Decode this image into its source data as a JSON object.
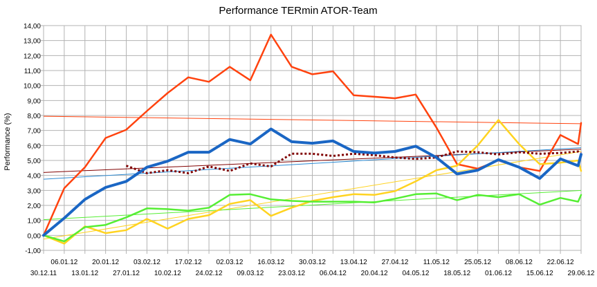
{
  "chart_data": {
    "type": "line",
    "title": "Performance TERmin ATOR-Team",
    "xlabel": "",
    "ylabel": "Performance (%)",
    "ylim": [
      -1,
      14
    ],
    "yticks": [
      "-1,00",
      "0,00",
      "1,00",
      "2,00",
      "3,00",
      "4,00",
      "5,00",
      "6,00",
      "7,00",
      "8,00",
      "9,00",
      "10,00",
      "11,00",
      "12,00",
      "13,00",
      "14,00"
    ],
    "grid": true,
    "legend": "none",
    "x_dates": [
      "30.12.11",
      "06.01.12",
      "13.01.12",
      "20.01.12",
      "27.01.12",
      "03.02.12",
      "10.02.12",
      "17.02.12",
      "24.02.12",
      "02.03.12",
      "09.03.12",
      "16.03.12",
      "23.03.12",
      "30.03.12",
      "06.04.12",
      "13.04.12",
      "20.04.12",
      "27.04.12",
      "04.05.12",
      "11.05.12",
      "18.05.12",
      "25.05.12",
      "01.06.12",
      "08.06.12",
      "15.06.12",
      "22.06.12",
      "29.06.12"
    ],
    "series": [
      {
        "color": "#ff420e",
        "width": 2.5,
        "dash": "",
        "points": [
          [
            "30.12.11",
            0.0
          ],
          [
            "06.01.12",
            3.15
          ],
          [
            "13.01.12",
            4.55
          ],
          [
            "20.01.12",
            6.5
          ],
          [
            "27.01.12",
            7.05
          ],
          [
            "03.02.12",
            8.3
          ],
          [
            "10.02.12",
            9.5
          ],
          [
            "17.02.12",
            10.55
          ],
          [
            "24.02.12",
            10.25
          ],
          [
            "02.03.12",
            11.25
          ],
          [
            "09.03.12",
            10.35
          ],
          [
            "16.03.12",
            13.4
          ],
          [
            "23.03.12",
            11.25
          ],
          [
            "30.03.12",
            10.75
          ],
          [
            "06.04.12",
            10.95
          ],
          [
            "13.04.12",
            9.35
          ],
          [
            "20.04.12",
            9.25
          ],
          [
            "27.04.12",
            9.15
          ],
          [
            "04.05.12",
            9.4
          ],
          [
            "11.05.12",
            7.2
          ],
          [
            "18.05.12",
            4.75
          ],
          [
            "25.05.12",
            4.45
          ],
          [
            "01.06.12",
            5.0
          ],
          [
            "08.06.12",
            4.55
          ],
          [
            "15.06.12",
            4.3
          ],
          [
            "22.06.12",
            6.7
          ],
          [
            "28.06.12",
            6.1
          ],
          [
            "29.06.12",
            7.5
          ]
        ]
      },
      {
        "color": "#ffd320",
        "width": 2.5,
        "dash": "",
        "points": [
          [
            "30.12.11",
            0.0
          ],
          [
            "06.01.12",
            -0.55
          ],
          [
            "13.01.12",
            0.6
          ],
          [
            "20.01.12",
            0.15
          ],
          [
            "27.01.12",
            0.35
          ],
          [
            "03.02.12",
            1.1
          ],
          [
            "10.02.12",
            0.45
          ],
          [
            "17.02.12",
            1.1
          ],
          [
            "24.02.12",
            1.35
          ],
          [
            "02.03.12",
            2.1
          ],
          [
            "09.03.12",
            2.35
          ],
          [
            "16.03.12",
            1.3
          ],
          [
            "23.03.12",
            1.85
          ],
          [
            "30.03.12",
            2.3
          ],
          [
            "06.04.12",
            2.55
          ],
          [
            "13.04.12",
            2.75
          ],
          [
            "20.04.12",
            2.7
          ],
          [
            "27.04.12",
            2.95
          ],
          [
            "04.05.12",
            3.6
          ],
          [
            "11.05.12",
            4.35
          ],
          [
            "18.05.12",
            4.65
          ],
          [
            "25.05.12",
            6.0
          ],
          [
            "01.06.12",
            7.7
          ],
          [
            "08.06.12",
            6.1
          ],
          [
            "15.06.12",
            4.75
          ],
          [
            "22.06.12",
            4.85
          ],
          [
            "28.06.12",
            5.0
          ],
          [
            "29.06.12",
            4.3
          ]
        ]
      },
      {
        "color": "#55ee33",
        "width": 2.5,
        "dash": "",
        "points": [
          [
            "30.12.11",
            0.0
          ],
          [
            "06.01.12",
            -0.4
          ],
          [
            "13.01.12",
            0.55
          ],
          [
            "20.01.12",
            0.7
          ],
          [
            "27.01.12",
            1.2
          ],
          [
            "03.02.12",
            1.8
          ],
          [
            "10.02.12",
            1.75
          ],
          [
            "17.02.12",
            1.65
          ],
          [
            "24.02.12",
            1.85
          ],
          [
            "02.03.12",
            2.7
          ],
          [
            "09.03.12",
            2.75
          ],
          [
            "16.03.12",
            2.4
          ],
          [
            "23.03.12",
            2.3
          ],
          [
            "30.03.12",
            2.25
          ],
          [
            "06.04.12",
            2.25
          ],
          [
            "13.04.12",
            2.25
          ],
          [
            "20.04.12",
            2.2
          ],
          [
            "27.04.12",
            2.45
          ],
          [
            "04.05.12",
            2.75
          ],
          [
            "11.05.12",
            2.8
          ],
          [
            "18.05.12",
            2.35
          ],
          [
            "25.05.12",
            2.7
          ],
          [
            "01.06.12",
            2.55
          ],
          [
            "08.06.12",
            2.75
          ],
          [
            "15.06.12",
            2.05
          ],
          [
            "22.06.12",
            2.5
          ],
          [
            "28.06.12",
            2.25
          ],
          [
            "29.06.12",
            2.7
          ]
        ]
      },
      {
        "color": "#800000",
        "width": 3,
        "dash": "3,3",
        "points": [
          [
            "27.01.12",
            4.65
          ],
          [
            "03.02.12",
            4.15
          ],
          [
            "10.02.12",
            4.35
          ],
          [
            "17.02.12",
            4.15
          ],
          [
            "24.02.12",
            4.6
          ],
          [
            "02.03.12",
            4.3
          ],
          [
            "09.03.12",
            4.8
          ],
          [
            "16.03.12",
            4.6
          ],
          [
            "23.03.12",
            5.45
          ],
          [
            "30.03.12",
            5.45
          ],
          [
            "06.04.12",
            5.3
          ],
          [
            "13.04.12",
            5.45
          ],
          [
            "20.04.12",
            5.35
          ],
          [
            "27.04.12",
            5.2
          ],
          [
            "04.05.12",
            5.1
          ],
          [
            "11.05.12",
            5.2
          ],
          [
            "18.05.12",
            5.6
          ],
          [
            "25.05.12",
            5.55
          ],
          [
            "01.06.12",
            5.4
          ],
          [
            "08.06.12",
            5.55
          ],
          [
            "15.06.12",
            5.45
          ],
          [
            "22.06.12",
            5.5
          ],
          [
            "28.06.12",
            5.6
          ],
          [
            "29.06.12",
            5.5
          ]
        ]
      },
      {
        "color": "#1a66c4",
        "width": 4,
        "dash": "",
        "points": [
          [
            "30.12.11",
            0.0
          ],
          [
            "06.01.12",
            1.15
          ],
          [
            "13.01.12",
            2.4
          ],
          [
            "20.01.12",
            3.2
          ],
          [
            "27.01.12",
            3.6
          ],
          [
            "03.02.12",
            4.55
          ],
          [
            "10.02.12",
            4.95
          ],
          [
            "17.02.12",
            5.55
          ],
          [
            "24.02.12",
            5.55
          ],
          [
            "02.03.12",
            6.4
          ],
          [
            "09.03.12",
            6.1
          ],
          [
            "16.03.12",
            7.1
          ],
          [
            "23.03.12",
            6.25
          ],
          [
            "30.03.12",
            6.15
          ],
          [
            "06.04.12",
            6.3
          ],
          [
            "13.04.12",
            5.6
          ],
          [
            "20.04.12",
            5.5
          ],
          [
            "27.04.12",
            5.6
          ],
          [
            "04.05.12",
            5.95
          ],
          [
            "11.05.12",
            5.2
          ],
          [
            "18.05.12",
            4.1
          ],
          [
            "25.05.12",
            4.35
          ],
          [
            "01.06.12",
            5.05
          ],
          [
            "08.06.12",
            4.55
          ],
          [
            "15.06.12",
            3.8
          ],
          [
            "22.06.12",
            5.1
          ],
          [
            "28.06.12",
            4.65
          ],
          [
            "29.06.12",
            5.4
          ]
        ]
      }
    ],
    "trendlines": [
      {
        "color": "#ff420e",
        "from": [
          "30.12.11",
          7.95
        ],
        "to": [
          "29.06.12",
          7.45
        ]
      },
      {
        "color": "#800000",
        "from": [
          "30.12.11",
          4.2
        ],
        "to": [
          "29.06.12",
          5.75
        ]
      },
      {
        "color": "#2a8ad4",
        "from": [
          "30.12.11",
          3.75
        ],
        "to": [
          "29.06.12",
          5.85
        ]
      },
      {
        "color": "#ffd320",
        "from": [
          "30.12.11",
          -0.25
        ],
        "to": [
          "29.06.12",
          5.6
        ]
      },
      {
        "color": "#55ee33",
        "from": [
          "30.12.11",
          1.05
        ],
        "to": [
          "29.06.12",
          3.0
        ]
      }
    ]
  }
}
